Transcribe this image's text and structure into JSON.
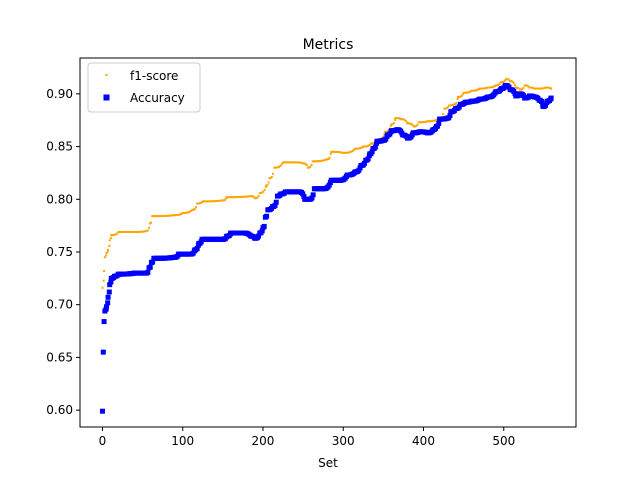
{
  "colors": {
    "f1_score": "#FFA500",
    "accuracy": "#0000FF",
    "axes": "#000000",
    "background": "#FFFFFF",
    "legend_border": "#cccccc"
  },
  "chart_data": {
    "type": "scatter",
    "title": "Metrics",
    "xlabel": "Set",
    "ylabel": "",
    "xlim": [
      -28,
      590
    ],
    "ylim": [
      0.584,
      0.934
    ],
    "xticks": [
      0,
      100,
      200,
      300,
      400,
      500
    ],
    "yticks": [
      0.6,
      0.65,
      0.7,
      0.75,
      0.8,
      0.85,
      0.9
    ],
    "xtick_labels": [
      "0",
      "100",
      "200",
      "300",
      "400",
      "500"
    ],
    "ytick_labels": [
      "0.60",
      "0.65",
      "0.70",
      "0.75",
      "0.80",
      "0.85",
      "0.90"
    ],
    "grid": false,
    "legend_position": "upper-left",
    "series": [
      {
        "name": "f1-score",
        "marker": "dot",
        "color": "#FFA500",
        "points": [
          [
            0,
            0.716
          ],
          [
            2,
            0.732
          ],
          [
            3,
            0.745
          ],
          [
            5,
            0.749
          ],
          [
            7,
            0.752
          ],
          [
            9,
            0.761
          ],
          [
            11,
            0.766
          ],
          [
            20,
            0.769
          ],
          [
            40,
            0.769
          ],
          [
            55,
            0.77
          ],
          [
            59,
            0.777
          ],
          [
            62,
            0.784
          ],
          [
            90,
            0.785
          ],
          [
            100,
            0.787
          ],
          [
            112,
            0.79
          ],
          [
            118,
            0.796
          ],
          [
            125,
            0.798
          ],
          [
            150,
            0.799
          ],
          [
            155,
            0.802
          ],
          [
            185,
            0.803
          ],
          [
            190,
            0.801
          ],
          [
            196,
            0.806
          ],
          [
            204,
            0.813
          ],
          [
            208,
            0.82
          ],
          [
            214,
            0.83
          ],
          [
            225,
            0.835
          ],
          [
            240,
            0.835
          ],
          [
            250,
            0.834
          ],
          [
            256,
            0.83
          ],
          [
            262,
            0.836
          ],
          [
            280,
            0.838
          ],
          [
            285,
            0.845
          ],
          [
            300,
            0.844
          ],
          [
            315,
            0.848
          ],
          [
            325,
            0.85
          ],
          [
            335,
            0.853
          ],
          [
            345,
            0.857
          ],
          [
            352,
            0.864
          ],
          [
            360,
            0.871
          ],
          [
            365,
            0.877
          ],
          [
            372,
            0.876
          ],
          [
            380,
            0.872
          ],
          [
            388,
            0.869
          ],
          [
            394,
            0.873
          ],
          [
            405,
            0.874
          ],
          [
            420,
            0.877
          ],
          [
            426,
            0.886
          ],
          [
            432,
            0.889
          ],
          [
            438,
            0.89
          ],
          [
            443,
            0.897
          ],
          [
            450,
            0.901
          ],
          [
            460,
            0.903
          ],
          [
            470,
            0.905
          ],
          [
            480,
            0.906
          ],
          [
            490,
            0.908
          ],
          [
            496,
            0.911
          ],
          [
            503,
            0.914
          ],
          [
            508,
            0.912
          ],
          [
            515,
            0.906
          ],
          [
            520,
            0.904
          ],
          [
            526,
            0.908
          ],
          [
            532,
            0.906
          ],
          [
            538,
            0.905
          ],
          [
            545,
            0.905
          ],
          [
            552,
            0.906
          ],
          [
            559,
            0.905
          ]
        ]
      },
      {
        "name": "Accuracy",
        "marker": "square",
        "color": "#0000FF",
        "points": [
          [
            0,
            0.599
          ],
          [
            1,
            0.655
          ],
          [
            2,
            0.684
          ],
          [
            3,
            0.694
          ],
          [
            5,
            0.698
          ],
          [
            7,
            0.707
          ],
          [
            9,
            0.719
          ],
          [
            11,
            0.725
          ],
          [
            15,
            0.727
          ],
          [
            20,
            0.729
          ],
          [
            40,
            0.73
          ],
          [
            55,
            0.73
          ],
          [
            58,
            0.735
          ],
          [
            61,
            0.74
          ],
          [
            64,
            0.744
          ],
          [
            90,
            0.745
          ],
          [
            95,
            0.748
          ],
          [
            110,
            0.748
          ],
          [
            115,
            0.752
          ],
          [
            120,
            0.758
          ],
          [
            124,
            0.762
          ],
          [
            150,
            0.762
          ],
          [
            155,
            0.765
          ],
          [
            160,
            0.768
          ],
          [
            175,
            0.768
          ],
          [
            185,
            0.765
          ],
          [
            190,
            0.763
          ],
          [
            196,
            0.768
          ],
          [
            200,
            0.773
          ],
          [
            203,
            0.783
          ],
          [
            206,
            0.79
          ],
          [
            212,
            0.793
          ],
          [
            218,
            0.803
          ],
          [
            222,
            0.805
          ],
          [
            228,
            0.807
          ],
          [
            245,
            0.807
          ],
          [
            252,
            0.8
          ],
          [
            258,
            0.8
          ],
          [
            264,
            0.81
          ],
          [
            275,
            0.81
          ],
          [
            285,
            0.818
          ],
          [
            295,
            0.818
          ],
          [
            305,
            0.823
          ],
          [
            315,
            0.826
          ],
          [
            322,
            0.832
          ],
          [
            328,
            0.837
          ],
          [
            333,
            0.843
          ],
          [
            337,
            0.848
          ],
          [
            342,
            0.855
          ],
          [
            350,
            0.856
          ],
          [
            355,
            0.861
          ],
          [
            360,
            0.865
          ],
          [
            367,
            0.866
          ],
          [
            374,
            0.861
          ],
          [
            380,
            0.858
          ],
          [
            387,
            0.863
          ],
          [
            395,
            0.864
          ],
          [
            405,
            0.863
          ],
          [
            412,
            0.866
          ],
          [
            416,
            0.869
          ],
          [
            420,
            0.876
          ],
          [
            430,
            0.877
          ],
          [
            434,
            0.883
          ],
          [
            440,
            0.886
          ],
          [
            446,
            0.89
          ],
          [
            452,
            0.892
          ],
          [
            460,
            0.893
          ],
          [
            470,
            0.895
          ],
          [
            480,
            0.897
          ],
          [
            490,
            0.902
          ],
          [
            497,
            0.905
          ],
          [
            502,
            0.908
          ],
          [
            508,
            0.904
          ],
          [
            515,
            0.898
          ],
          [
            520,
            0.9
          ],
          [
            526,
            0.896
          ],
          [
            532,
            0.898
          ],
          [
            538,
            0.897
          ],
          [
            544,
            0.894
          ],
          [
            549,
            0.888
          ],
          [
            554,
            0.893
          ],
          [
            559,
            0.896
          ]
        ]
      }
    ]
  }
}
